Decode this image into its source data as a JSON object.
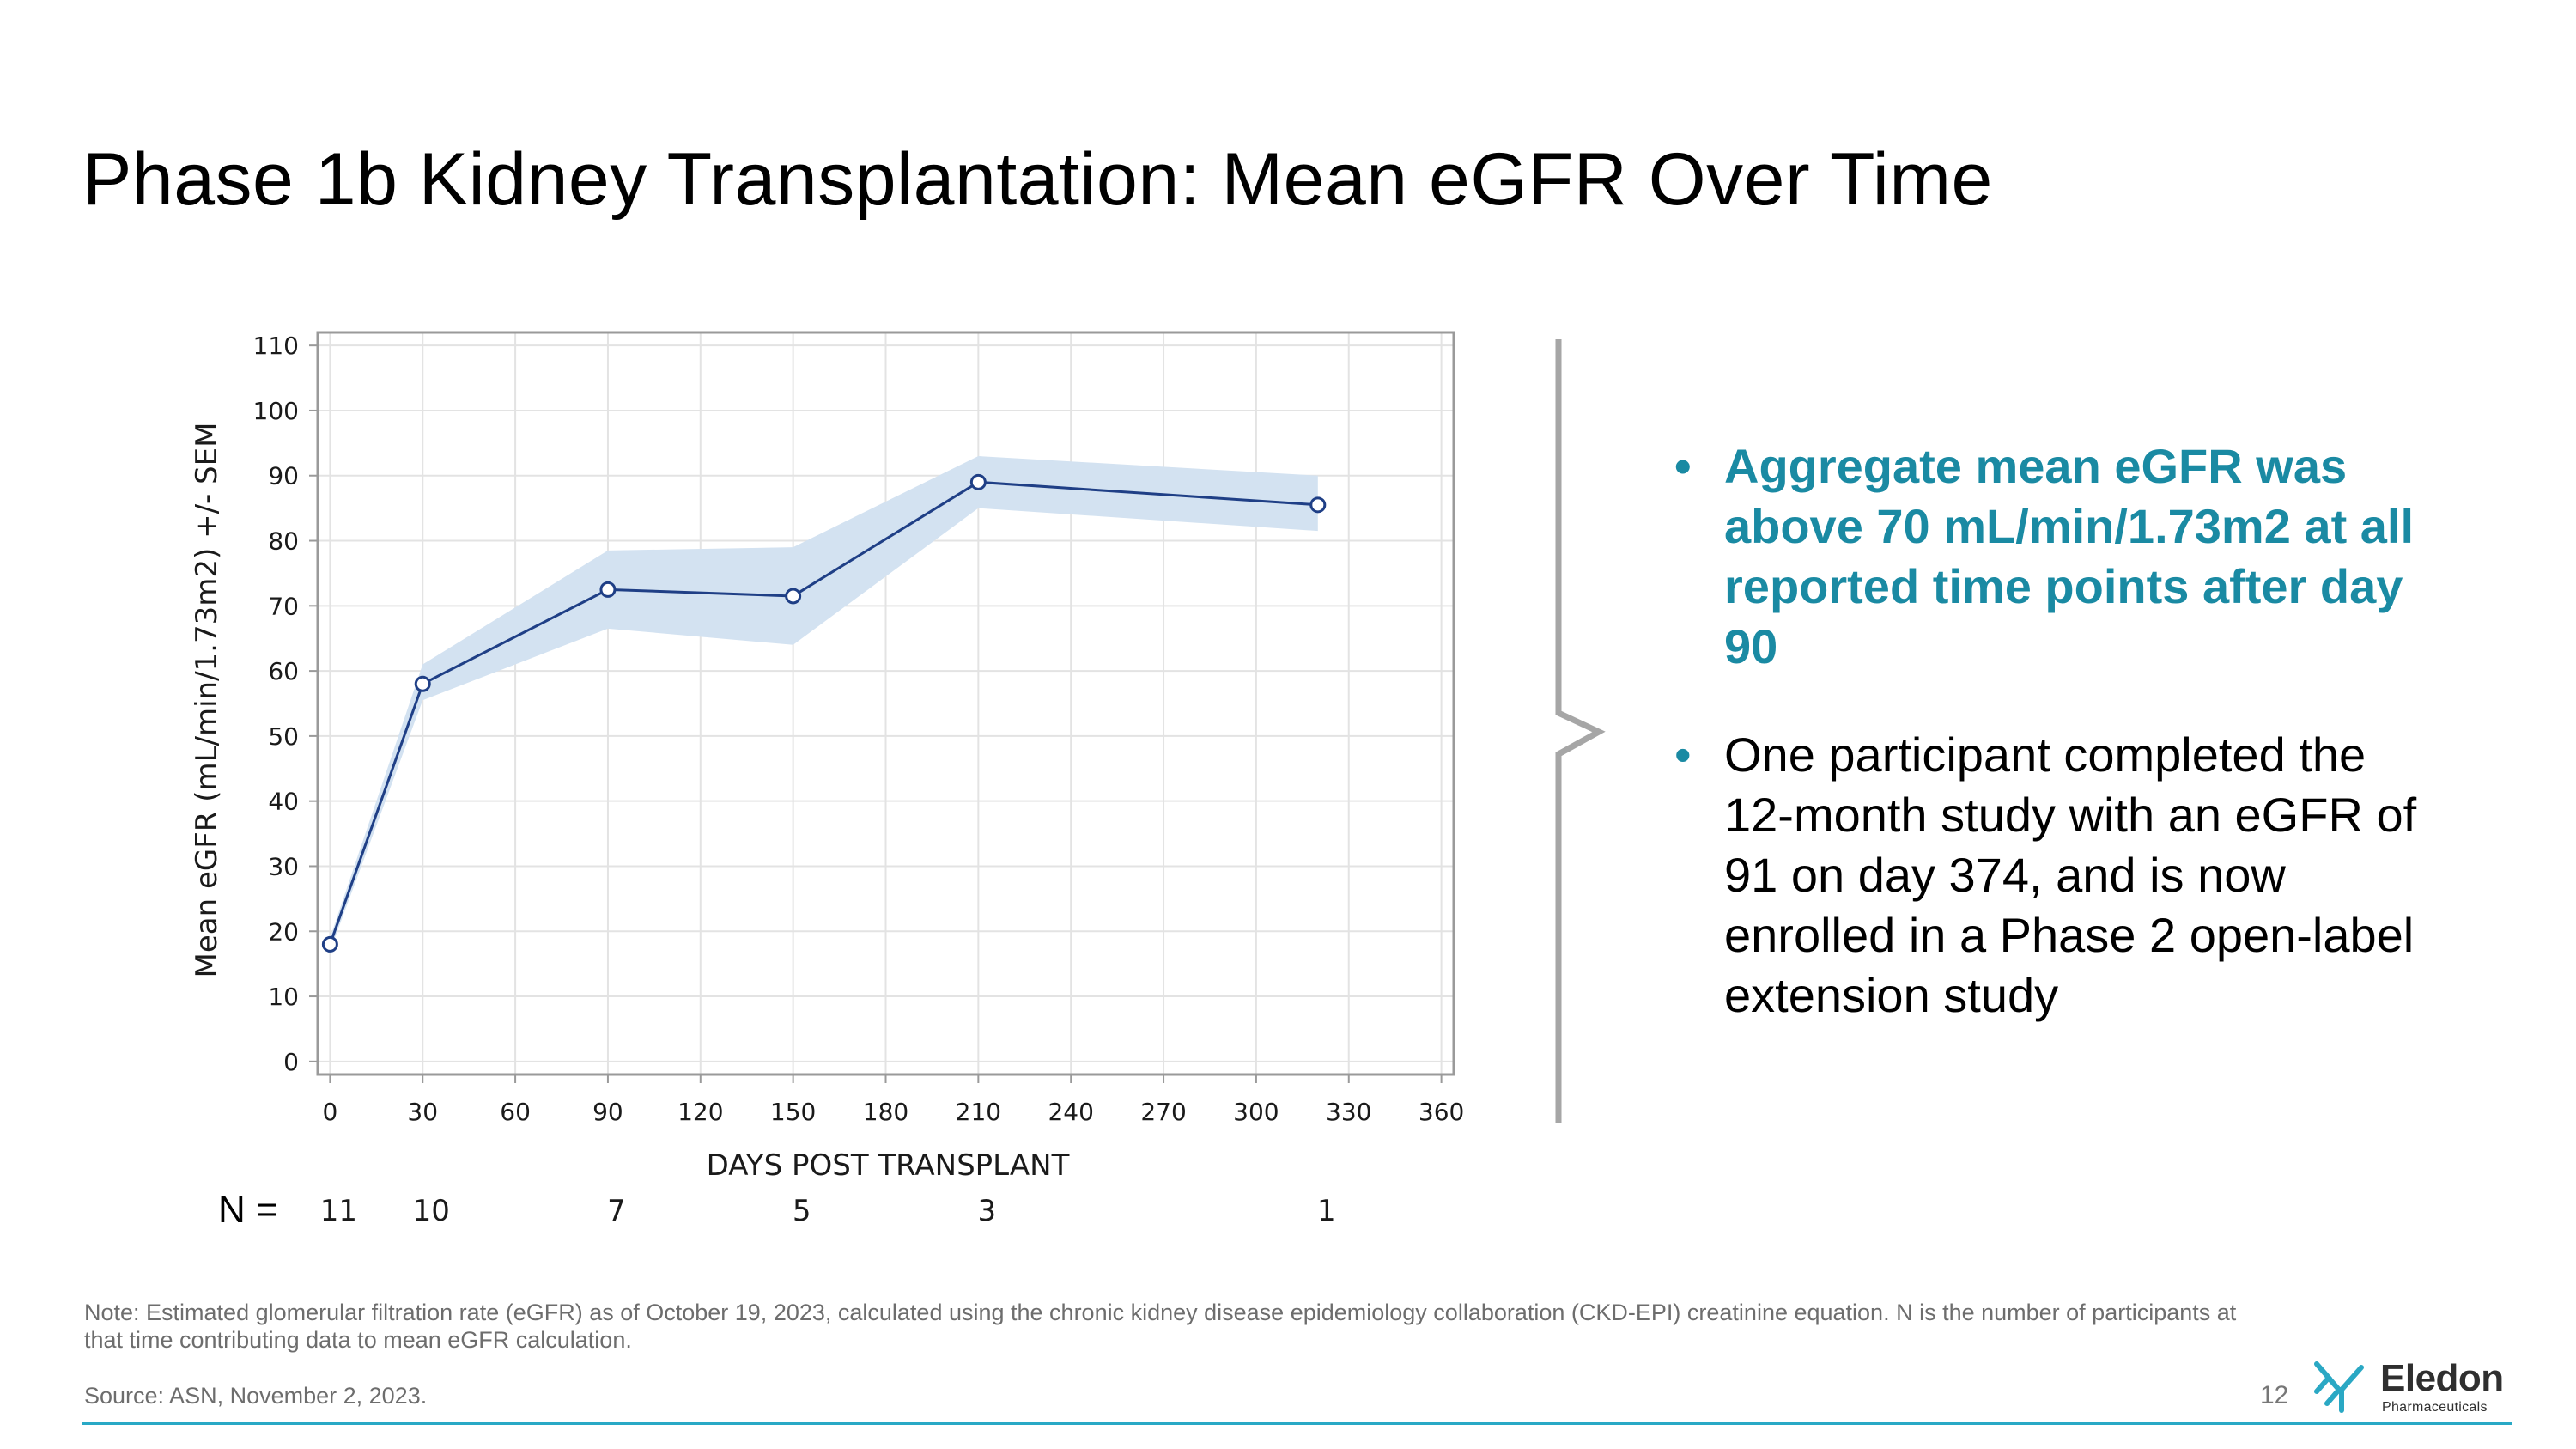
{
  "slide": {
    "title": "Phase 1b Kidney Transplantation: Mean eGFR Over Time",
    "page_number": "12"
  },
  "bullets": [
    "Aggregate mean eGFR was above 70 mL/min/1.73m2 at all reported time points after day 90",
    "One participant completed the 12-month study with an eGFR of 91 on day 374, and is now enrolled in a Phase 2 open-label extension study"
  ],
  "bullet_glyph": "•",
  "n_row": {
    "label": "N =",
    "values": [
      "11",
      "10",
      "7",
      "5",
      "3",
      "1"
    ]
  },
  "footnotes": {
    "note": "Note: Estimated glomerular filtration rate (eGFR) as of October 19, 2023, calculated using the chronic kidney disease epidemiology collaboration (CKD-EPI) creatinine equation. N is the number of participants at that time contributing data  to mean eGFR calculation.",
    "source": "Source: ASN, November 2, 2023."
  },
  "logo": {
    "name": "Eledon",
    "tagline": "Pharmaceuticals"
  },
  "colors": {
    "accent": "#1a8aa3",
    "line": "#1f3f86",
    "band": "#d3e2f1",
    "footer_rule": "#29a9c6"
  },
  "chart_data": {
    "type": "line",
    "xlabel": "DAYS POST TRANSPLANT",
    "ylabel": "Mean eGFR (mL/min/1.73m2) +/- SEM",
    "xlim": [
      -4,
      364
    ],
    "ylim": [
      -2,
      112
    ],
    "xticks": [
      0,
      30,
      60,
      90,
      120,
      150,
      180,
      210,
      240,
      270,
      300,
      330,
      360
    ],
    "yticks": [
      0,
      10,
      20,
      30,
      40,
      50,
      60,
      70,
      80,
      90,
      100,
      110
    ],
    "grid": true,
    "series": [
      {
        "name": "Mean eGFR",
        "x": [
          0,
          30,
          90,
          150,
          210,
          320
        ],
        "y": [
          18,
          58,
          72.5,
          71.5,
          89,
          85.5
        ],
        "upper": [
          19,
          61,
          78.5,
          79,
          93,
          90
        ],
        "lower": [
          17,
          55.5,
          66.5,
          64,
          85,
          81.5
        ]
      }
    ]
  }
}
